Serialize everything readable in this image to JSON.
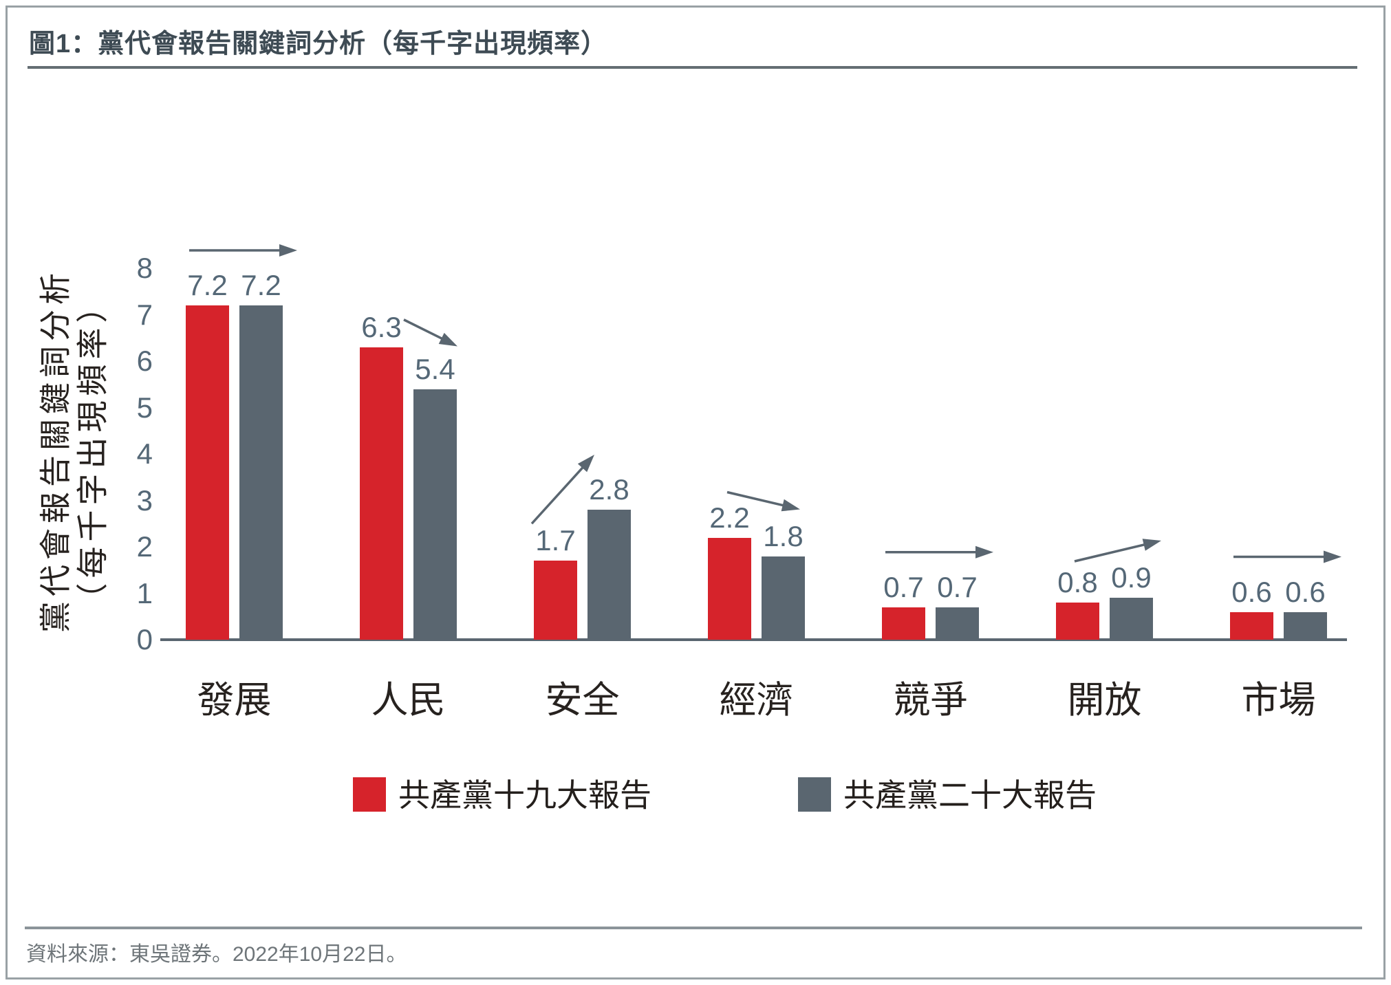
{
  "title": "圖1：黨代會報告關鍵詞分析（每千字出現頻率）",
  "y_axis_title": {
    "line1": "黨代會報告關鍵詞分析",
    "line2": "（每千字出現頻率）"
  },
  "source_note": "資料來源：東吳證券。2022年10月22日。",
  "colors": {
    "series1": "#d6232b",
    "series2": "#5a6670",
    "axis": "#5a6670",
    "tick_text": "#556877",
    "arrow": "#5a6670",
    "category_text": "#27221f",
    "title_text": "#3e4b54"
  },
  "chart_data": {
    "type": "bar",
    "categories": [
      "發展",
      "人民",
      "安全",
      "經濟",
      "競爭",
      "開放",
      "市場"
    ],
    "series": [
      {
        "name": "共產黨十九大報告",
        "values": [
          7.2,
          6.3,
          1.7,
          2.2,
          0.7,
          0.8,
          0.6
        ]
      },
      {
        "name": "共產黨二十大報告",
        "values": [
          7.2,
          5.4,
          2.8,
          1.8,
          0.7,
          0.9,
          0.6
        ]
      }
    ],
    "data_labels": [
      [
        "7.2",
        "7.2"
      ],
      [
        "6.3",
        "5.4"
      ],
      [
        "1.7",
        "2.8"
      ],
      [
        "2.2",
        "1.8"
      ],
      [
        "0.7",
        "0.7"
      ],
      [
        "0.8",
        "0.9"
      ],
      [
        "0.6",
        "0.6"
      ]
    ],
    "trend_arrows": [
      "flat",
      "down",
      "up",
      "down",
      "flat",
      "up",
      "flat"
    ],
    "y_ticks": [
      0,
      1,
      2,
      3,
      4,
      5,
      6,
      7,
      8
    ],
    "ylim": [
      0,
      8
    ],
    "xlabel": "",
    "ylabel": "黨代會報告關鍵詞分析（每千字出現頻率）",
    "grid": false,
    "legend_position": "bottom"
  }
}
